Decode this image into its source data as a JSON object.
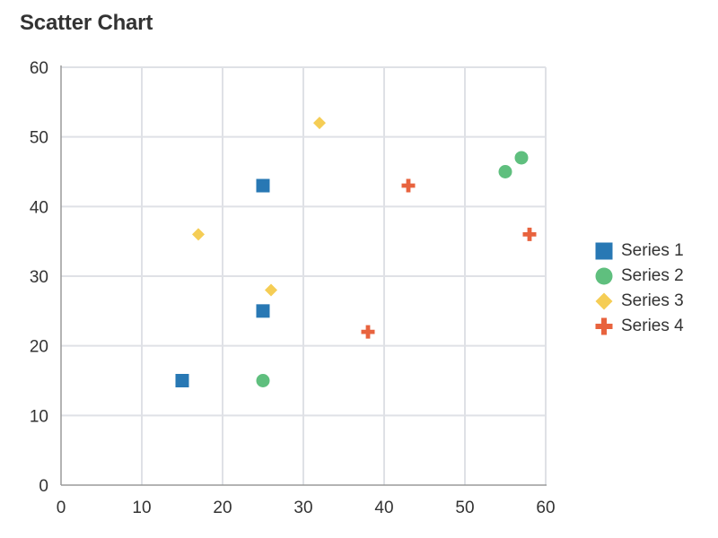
{
  "chart_data": {
    "type": "scatter",
    "title": "Scatter Chart",
    "xlabel": "",
    "ylabel": "",
    "xlim": [
      0,
      60
    ],
    "ylim": [
      0,
      60
    ],
    "xticks": [
      "0",
      "10",
      "20",
      "30",
      "40",
      "50",
      "60"
    ],
    "yticks": [
      "0",
      "10",
      "20",
      "30",
      "40",
      "50",
      "60"
    ],
    "grid": true,
    "legend_position": "right",
    "series": [
      {
        "name": "Series 1",
        "marker": "square",
        "color": "#2878b4",
        "points": [
          [
            15,
            15
          ],
          [
            25,
            25
          ],
          [
            25,
            43
          ]
        ]
      },
      {
        "name": "Series 2",
        "marker": "circle",
        "color": "#5fbf7e",
        "points": [
          [
            25,
            15
          ],
          [
            55,
            45
          ],
          [
            57,
            47
          ]
        ]
      },
      {
        "name": "Series 3",
        "marker": "diamond",
        "color": "#f5cd55",
        "points": [
          [
            17,
            36
          ],
          [
            26,
            28
          ],
          [
            32,
            52
          ]
        ]
      },
      {
        "name": "Series 4",
        "marker": "plus",
        "color": "#e8633e",
        "points": [
          [
            38,
            22
          ],
          [
            43,
            43
          ],
          [
            58,
            36
          ]
        ]
      }
    ]
  }
}
